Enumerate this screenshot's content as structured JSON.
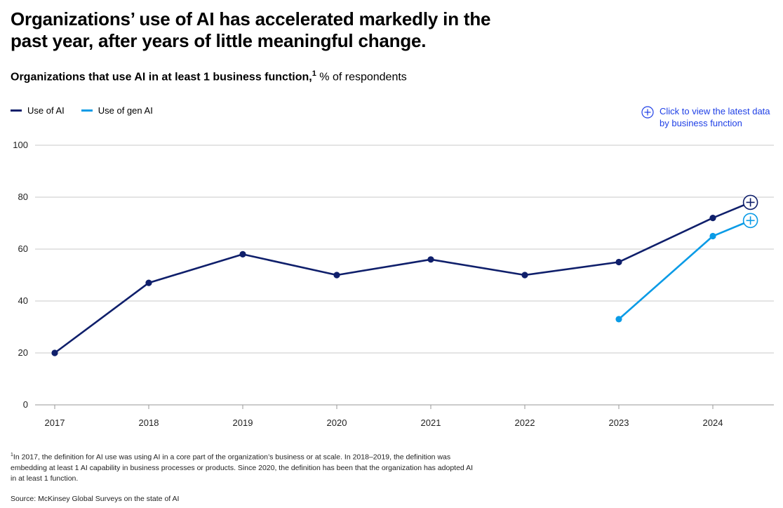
{
  "header": {
    "title": "Organizations’ use of AI has accelerated markedly in the past year, after years of little meaningful change.",
    "subtitle_bold": "Organizations that use AI in at least 1 business function,",
    "subtitle_sup": "1",
    "subtitle_rest": " % of respondents"
  },
  "cta": {
    "label": "Click to view the latest data by business function"
  },
  "footer": {
    "footnote_marker": "1",
    "footnote": "In 2017, the definition for AI use was using AI in a core part of the organization’s business or at scale. In 2018–2019, the definition was embedding at least 1 AI capability in business processes or products. Since 2020, the definition has been that the organization has adopted AI in at least 1 function.",
    "source": "Source: McKinsey Global Surveys on the state of AI"
  },
  "colors": {
    "ai": "#0f1f6b",
    "genai": "#0a9be6",
    "grid": "#c8c8c8",
    "cta": "#1f40e6"
  },
  "chart_data": {
    "type": "line",
    "title": "Organizations that use AI in at least 1 business function",
    "ylabel": "% of respondents",
    "xlabel": "",
    "categories": [
      "2017",
      "2018",
      "2019",
      "2020",
      "2021",
      "2022",
      "2023",
      "2024"
    ],
    "yticks": [
      "0",
      "20",
      "40",
      "60",
      "80",
      "100"
    ],
    "ylim": [
      0,
      100
    ],
    "grid": true,
    "legend_position": "top-left",
    "series": [
      {
        "name": "Use of AI",
        "color": "#0f1f6b",
        "points": [
          {
            "x": 2017,
            "y": 20
          },
          {
            "x": 2018,
            "y": 47
          },
          {
            "x": 2019,
            "y": 58
          },
          {
            "x": 2020,
            "y": 50
          },
          {
            "x": 2021,
            "y": 56
          },
          {
            "x": 2022,
            "y": 50
          },
          {
            "x": 2023,
            "y": 55
          },
          {
            "x": 2024,
            "y": 72
          },
          {
            "x": 2024.4,
            "y": 78,
            "marker": "plus"
          }
        ]
      },
      {
        "name": "Use of gen AI",
        "color": "#0a9be6",
        "points": [
          {
            "x": 2023,
            "y": 33
          },
          {
            "x": 2024,
            "y": 65
          },
          {
            "x": 2024.4,
            "y": 71,
            "marker": "plus"
          }
        ]
      }
    ]
  }
}
